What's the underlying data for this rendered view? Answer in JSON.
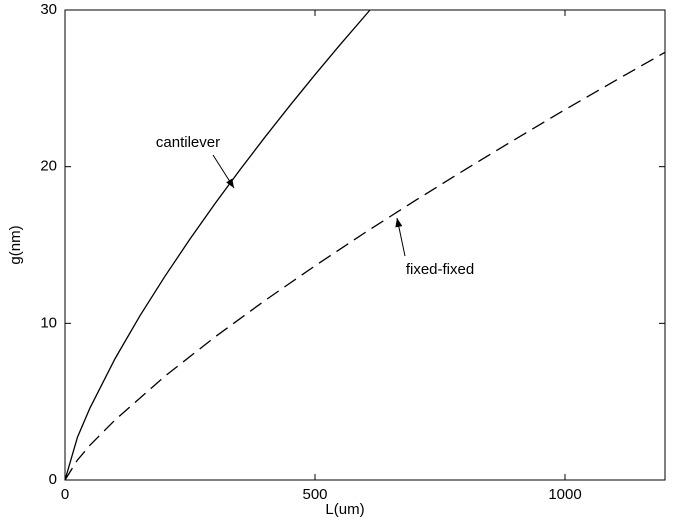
{
  "chart_data": {
    "type": "line",
    "xlabel": "L(um)",
    "ylabel": "g(nm)",
    "xlim": [
      0,
      1200
    ],
    "ylim": [
      0,
      30
    ],
    "xticks": [
      0,
      500,
      1000
    ],
    "yticks": [
      0,
      10,
      20,
      30
    ],
    "grid": false,
    "series": [
      {
        "name": "cantilever",
        "color": "#000000",
        "style": "solid",
        "x": [
          0,
          25,
          50,
          100,
          150,
          200,
          250,
          300,
          350,
          400,
          450,
          500,
          550,
          610
        ],
        "values": [
          0,
          2.74,
          4.6,
          7.74,
          10.49,
          13.01,
          15.38,
          17.64,
          19.8,
          21.89,
          23.91,
          25.87,
          27.78,
          30
        ]
      },
      {
        "name": "fixed-fixed",
        "color": "#000000",
        "style": "dashed",
        "x": [
          0,
          25,
          50,
          100,
          200,
          300,
          400,
          500,
          600,
          700,
          800,
          900,
          1000,
          1100,
          1200
        ],
        "values": [
          0,
          1.28,
          2.22,
          3.83,
          6.63,
          9.13,
          11.46,
          13.67,
          15.79,
          17.83,
          19.81,
          21.74,
          23.64,
          25.48,
          27.3
        ]
      }
    ]
  }
}
